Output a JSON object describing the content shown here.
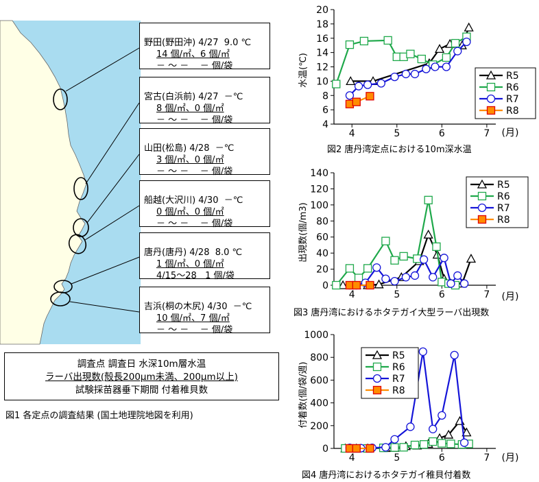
{
  "stations": [
    {
      "line1": "野田(野田沖) 4/27  9.0 ℃",
      "line2": "14 個/㎡、6 個/㎡",
      "line3": "－ ～ －    － 個/袋"
    },
    {
      "line1": "宮古(白浜前) 4/27  －℃",
      "line2": "8 個/㎡、0 個/㎡",
      "line3": "－ ～ －    － 個/袋"
    },
    {
      "line1": "山田(松島) 4/28  －℃",
      "line2": "3 個/㎡、0 個/㎡",
      "line3": "－ ～ －    － 個/袋"
    },
    {
      "line1": "船越(大沢川) 4/30  －℃",
      "line2": "0 個/㎡、0 個/㎡",
      "line3": "－ ～ －    － 個/袋"
    },
    {
      "line1": "唐丹(唐丹) 4/28  8.0 ℃",
      "line2": "1 個/㎡、0 個/㎡",
      "line3": "4/15～28   1 個/袋"
    },
    {
      "line1": "吉浜(桐の木尻) 4/30  －℃",
      "line2": "10 個/㎡、7 個/㎡",
      "line3": "－ ～ －    － 個/袋"
    }
  ],
  "legend_box": {
    "line1": "調査点  調査日  水深10m層水温",
    "line2": "ラーバ出現数(殻長200μm未満、200μm以上)",
    "line3": "試験採苗器垂下期間  付着稚貝数"
  },
  "fig1_caption": "図1 各定点の調査結果 (国土地理院地図を利用)",
  "colors": {
    "sea": "#a9dcf0",
    "land": "#ffffe6",
    "R5": "#000000",
    "R6": "#1ea84a",
    "R7": "#1414d8",
    "R8": "#ff8c00",
    "R8_edge": "#e00000"
  },
  "chart_data": [
    {
      "type": "line",
      "title": "図2 唐丹湾定点における10m深水温",
      "ylabel": "水温(℃)",
      "xlabel": "(月)",
      "xlim": [
        3.6,
        7.2
      ],
      "ylim": [
        4,
        20
      ],
      "xticks": [
        4,
        5,
        6,
        7
      ],
      "yticks": [
        4,
        6,
        8,
        10,
        12,
        14,
        16,
        18,
        20
      ],
      "legend": "right",
      "series": [
        {
          "name": "R5",
          "marker": "triangle",
          "points": [
            [
              3.97,
              10.0
            ],
            [
              4.47,
              10.0
            ],
            [
              5.72,
              12.5
            ],
            [
              5.95,
              14.5
            ],
            [
              6.18,
              15.2
            ],
            [
              6.45,
              15.0
            ],
            [
              6.6,
              17.5
            ]
          ]
        },
        {
          "name": "R6",
          "marker": "square",
          "points": [
            [
              3.65,
              9.6
            ],
            [
              3.95,
              15.1
            ],
            [
              4.27,
              15.6
            ],
            [
              4.8,
              15.7
            ],
            [
              5.0,
              13.4
            ],
            [
              5.15,
              13.4
            ],
            [
              5.3,
              13.8
            ],
            [
              5.55,
              13.1
            ],
            [
              5.8,
              12.3
            ],
            [
              6.1,
              13.3
            ],
            [
              6.3,
              15.3
            ],
            [
              6.55,
              16.2
            ]
          ]
        },
        {
          "name": "R7",
          "marker": "circle",
          "points": [
            [
              3.95,
              8.0
            ],
            [
              4.15,
              9.3
            ],
            [
              4.35,
              9.5
            ],
            [
              4.65,
              9.7
            ],
            [
              4.95,
              10.6
            ],
            [
              5.2,
              11.0
            ],
            [
              5.4,
              11.0
            ],
            [
              5.65,
              11.7
            ],
            [
              5.85,
              12.0
            ],
            [
              6.1,
              12.0
            ],
            [
              6.35,
              14.2
            ],
            [
              6.55,
              15.5
            ]
          ]
        },
        {
          "name": "R8",
          "marker": "square",
          "points": [
            [
              3.95,
              6.8
            ],
            [
              4.1,
              7.1
            ],
            [
              4.4,
              7.9
            ]
          ]
        }
      ]
    },
    {
      "type": "line",
      "title": "図3 唐丹湾におけるホタテガイ大型ラーバ出現数",
      "ylabel": "出現数(個/m3)",
      "xlabel": "(月)",
      "xlim": [
        3.6,
        7.2
      ],
      "ylim": [
        0,
        140
      ],
      "xticks": [
        4,
        5,
        6,
        7
      ],
      "yticks": [
        0,
        20,
        40,
        60,
        80,
        100,
        120,
        140
      ],
      "legend": "top-right",
      "series": [
        {
          "name": "R5",
          "marker": "triangle",
          "points": [
            [
              3.8,
              0
            ],
            [
              4.1,
              0
            ],
            [
              4.35,
              0
            ],
            [
              4.6,
              1
            ],
            [
              5.1,
              10
            ],
            [
              5.5,
              30
            ],
            [
              5.7,
              63
            ],
            [
              5.9,
              38
            ],
            [
              6.05,
              8
            ],
            [
              6.2,
              2
            ],
            [
              6.45,
              2
            ],
            [
              6.65,
              33
            ]
          ]
        },
        {
          "name": "R6",
          "marker": "square",
          "points": [
            [
              3.65,
              0
            ],
            [
              3.95,
              21
            ],
            [
              4.15,
              9
            ],
            [
              4.35,
              21
            ],
            [
              4.75,
              55
            ],
            [
              4.95,
              31
            ],
            [
              5.15,
              36
            ],
            [
              5.45,
              33
            ],
            [
              5.7,
              106
            ],
            [
              5.88,
              48
            ],
            [
              6.0,
              4
            ],
            [
              6.15,
              2
            ],
            [
              6.3,
              0
            ]
          ]
        },
        {
          "name": "R7",
          "marker": "circle",
          "points": [
            [
              3.95,
              0
            ],
            [
              4.1,
              0
            ],
            [
              4.3,
              3
            ],
            [
              4.55,
              22
            ],
            [
              4.75,
              8
            ],
            [
              4.95,
              5
            ],
            [
              5.2,
              10
            ],
            [
              5.4,
              12
            ],
            [
              5.6,
              32
            ],
            [
              5.8,
              10
            ],
            [
              6.05,
              34
            ],
            [
              6.2,
              2
            ],
            [
              6.35,
              12
            ],
            [
              6.5,
              2
            ]
          ]
        },
        {
          "name": "R8",
          "marker": "square",
          "points": [
            [
              3.95,
              0
            ],
            [
              4.1,
              0
            ],
            [
              4.4,
              0
            ]
          ]
        }
      ]
    },
    {
      "type": "line",
      "title": "図4 唐丹湾におけるホタテガイ稚貝付着数",
      "ylabel": "付着数(個/袋/週)",
      "xlabel": "(月)",
      "xlim": [
        3.6,
        7.2
      ],
      "ylim": [
        0,
        1000
      ],
      "xticks": [
        4,
        5,
        6,
        7
      ],
      "yticks": [
        0,
        200,
        400,
        600,
        800,
        1000
      ],
      "legend": "top-left",
      "series": [
        {
          "name": "R5",
          "marker": "triangle",
          "points": [
            [
              3.85,
              0
            ],
            [
              4.1,
              0
            ],
            [
              4.35,
              0
            ],
            [
              4.75,
              3
            ],
            [
              4.95,
              5
            ],
            [
              5.2,
              20
            ],
            [
              5.45,
              25
            ],
            [
              5.7,
              40
            ],
            [
              5.95,
              90
            ],
            [
              6.15,
              120
            ],
            [
              6.4,
              240
            ],
            [
              6.55,
              140
            ]
          ]
        },
        {
          "name": "R6",
          "marker": "square",
          "points": [
            [
              3.85,
              0
            ],
            [
              4.1,
              0
            ],
            [
              4.35,
              0
            ],
            [
              4.7,
              5
            ],
            [
              4.95,
              8
            ],
            [
              5.15,
              10
            ],
            [
              5.4,
              30
            ],
            [
              5.6,
              35
            ],
            [
              5.8,
              60
            ],
            [
              6.0,
              45
            ],
            [
              6.2,
              40
            ],
            [
              6.45,
              35
            ],
            [
              6.6,
              40
            ]
          ]
        },
        {
          "name": "R7",
          "marker": "circle",
          "points": [
            [
              3.95,
              5
            ],
            [
              4.2,
              2
            ],
            [
              4.45,
              5
            ],
            [
              4.75,
              10
            ],
            [
              4.95,
              80
            ],
            [
              5.3,
              190
            ],
            [
              5.58,
              850
            ],
            [
              5.8,
              170
            ],
            [
              6.0,
              290
            ],
            [
              6.28,
              820
            ],
            [
              6.5,
              50
            ]
          ]
        },
        {
          "name": "R8",
          "marker": "square",
          "points": [
            [
              3.95,
              0
            ],
            [
              4.1,
              0
            ],
            [
              4.4,
              0
            ]
          ]
        }
      ]
    }
  ]
}
